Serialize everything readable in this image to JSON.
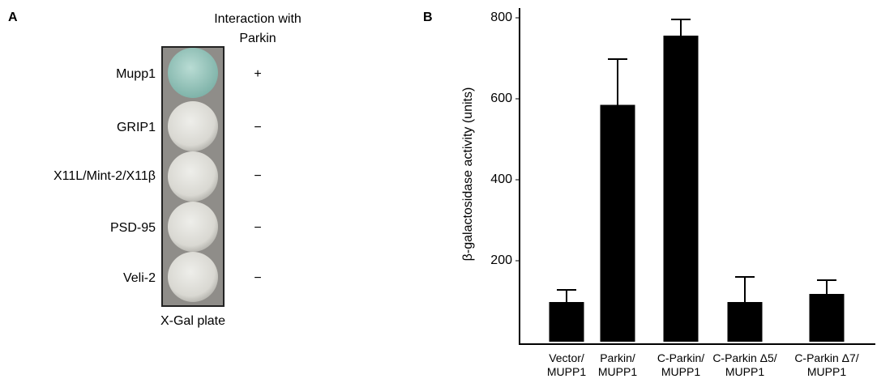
{
  "panel_a": {
    "label": "A",
    "header": "Interaction with\nParkin",
    "footer": "X-Gal plate",
    "rows": [
      {
        "name": "Mupp1",
        "interaction": "+"
      },
      {
        "name": "GRIP1",
        "interaction": "−"
      },
      {
        "name": "X11L/Mint-2/X11β",
        "interaction": "−"
      },
      {
        "name": "PSD-95",
        "interaction": "−"
      },
      {
        "name": "Veli-2",
        "interaction": "−"
      }
    ]
  },
  "chart_data": {
    "type": "bar",
    "panel_label": "B",
    "y_label": "β-galactosidase activity (units)",
    "categories": [
      "Vector/\nMUPP1",
      "Parkin/\nMUPP1",
      "C-Parkin/\nMUPP1",
      "C-Parkin Δ5/\nMUPP1",
      "C-Parkin Δ7/\nMUPP1"
    ],
    "values": [
      98,
      585,
      756,
      98,
      118
    ],
    "errors": [
      30,
      113,
      40,
      62,
      34
    ],
    "color": "#000000",
    "ylim": [
      0,
      830
    ],
    "yticks": [
      200,
      400,
      600,
      800
    ],
    "grid": false
  }
}
